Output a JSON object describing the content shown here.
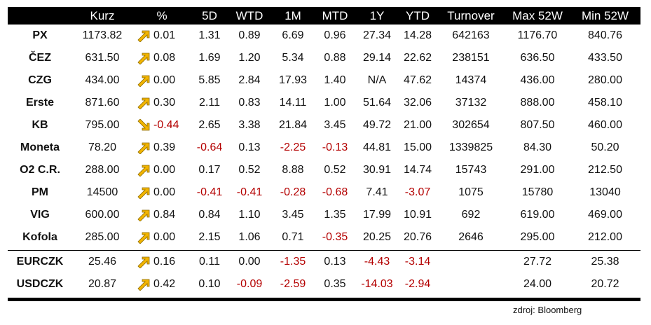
{
  "headers": [
    "",
    "Kurz",
    "%",
    "5D",
    "WTD",
    "1M",
    "MTD",
    "1Y",
    "YTD",
    "Turnover",
    "Max 52W",
    "Min 52W"
  ],
  "rows": [
    {
      "name": "PX",
      "kurz": "1173.82",
      "dir": "up",
      "pct": "0.01",
      "d5": "1.31",
      "wtd": "0.89",
      "m1": "6.69",
      "mtd": "0.96",
      "y1": "27.34",
      "ytd": "14.28",
      "turnover": "642163",
      "max": "1176.70",
      "min": "840.76"
    },
    {
      "name": "ČEZ",
      "kurz": "631.50",
      "dir": "up",
      "pct": "0.08",
      "d5": "1.69",
      "wtd": "1.20",
      "m1": "5.34",
      "mtd": "0.88",
      "y1": "29.14",
      "ytd": "22.62",
      "turnover": "238151",
      "max": "636.50",
      "min": "433.50"
    },
    {
      "name": "CZG",
      "kurz": "434.00",
      "dir": "up",
      "pct": "0.00",
      "d5": "5.85",
      "wtd": "2.84",
      "m1": "17.93",
      "mtd": "1.40",
      "y1": "N/A",
      "ytd": "47.62",
      "turnover": "14374",
      "max": "436.00",
      "min": "280.00"
    },
    {
      "name": "Erste",
      "kurz": "871.60",
      "dir": "up",
      "pct": "0.30",
      "d5": "2.11",
      "wtd": "0.83",
      "m1": "14.11",
      "mtd": "1.00",
      "y1": "51.64",
      "ytd": "32.06",
      "turnover": "37132",
      "max": "888.00",
      "min": "458.10"
    },
    {
      "name": "KB",
      "kurz": "795.00",
      "dir": "down",
      "pct": "-0.44",
      "d5": "2.65",
      "wtd": "3.38",
      "m1": "21.84",
      "mtd": "3.45",
      "y1": "49.72",
      "ytd": "21.00",
      "turnover": "302654",
      "max": "807.50",
      "min": "460.00"
    },
    {
      "name": "Moneta",
      "kurz": "78.20",
      "dir": "up",
      "pct": "0.39",
      "d5": "-0.64",
      "wtd": "0.13",
      "m1": "-2.25",
      "mtd": "-0.13",
      "y1": "44.81",
      "ytd": "15.00",
      "turnover": "1339825",
      "max": "84.30",
      "min": "50.20"
    },
    {
      "name": "O2 C.R.",
      "kurz": "288.00",
      "dir": "up",
      "pct": "0.00",
      "d5": "0.17",
      "wtd": "0.52",
      "m1": "8.88",
      "mtd": "0.52",
      "y1": "30.91",
      "ytd": "14.74",
      "turnover": "15743",
      "max": "291.00",
      "min": "212.50"
    },
    {
      "name": "PM",
      "kurz": "14500",
      "dir": "up",
      "pct": "0.00",
      "d5": "-0.41",
      "wtd": "-0.41",
      "m1": "-0.28",
      "mtd": "-0.68",
      "y1": "7.41",
      "ytd": "-3.07",
      "turnover": "1075",
      "max": "15780",
      "min": "13040"
    },
    {
      "name": "VIG",
      "kurz": "600.00",
      "dir": "up",
      "pct": "0.84",
      "d5": "0.84",
      "wtd": "1.10",
      "m1": "3.45",
      "mtd": "1.35",
      "y1": "17.99",
      "ytd": "10.91",
      "turnover": "692",
      "max": "619.00",
      "min": "469.00"
    },
    {
      "name": "Kofola",
      "kurz": "285.00",
      "dir": "up",
      "pct": "0.00",
      "d5": "2.15",
      "wtd": "1.06",
      "m1": "0.71",
      "mtd": "-0.35",
      "y1": "20.25",
      "ytd": "20.76",
      "turnover": "2646",
      "max": "295.00",
      "min": "212.00"
    }
  ],
  "fx_rows": [
    {
      "name": "EURCZK",
      "kurz": "25.46",
      "dir": "up",
      "pct": "0.16",
      "d5": "0.11",
      "wtd": "0.00",
      "m1": "-1.35",
      "mtd": "0.13",
      "y1": "-4.43",
      "ytd": "-3.14",
      "turnover": "",
      "max": "27.72",
      "min": "25.38"
    },
    {
      "name": "USDCZK",
      "kurz": "20.87",
      "dir": "up",
      "pct": "0.42",
      "d5": "0.10",
      "wtd": "-0.09",
      "m1": "-2.59",
      "mtd": "0.35",
      "y1": "-14.03",
      "ytd": "-2.94",
      "turnover": "",
      "max": "24.00",
      "min": "20.72"
    }
  ],
  "source": "zdroj: Bloomberg",
  "colors": {
    "negative": "#b40000",
    "arrow": "#f2b400",
    "header_bg": "#000000"
  },
  "icons": {
    "up": "arrow-up-right-icon",
    "down": "arrow-down-right-icon"
  }
}
